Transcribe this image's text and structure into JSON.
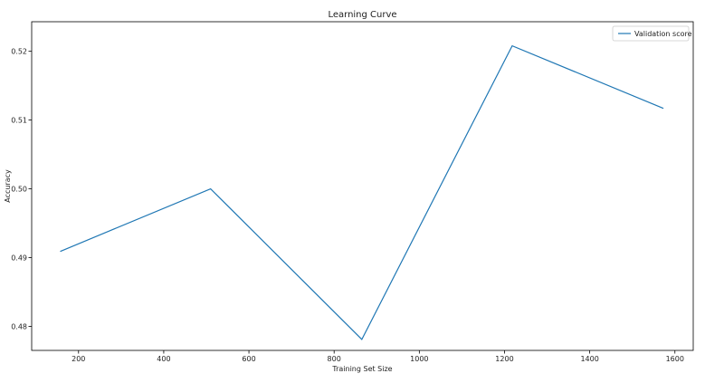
{
  "colors": {
    "series": "#1f77b4",
    "axis": "#000000",
    "background": "#ffffff",
    "legend_border": "#cccccc"
  },
  "chart_data": {
    "type": "line",
    "title": "Learning Curve",
    "xlabel": "Training Set Size",
    "ylabel": "Accuracy",
    "xlim": [
      90,
      1643
    ],
    "ylim": [
      0.4765,
      0.5243
    ],
    "xticks": [
      200,
      400,
      600,
      800,
      1000,
      1200,
      1400,
      1600
    ],
    "xtick_labels": [
      "200",
      "400",
      "600",
      "800",
      "1000",
      "1200",
      "1400",
      "1600"
    ],
    "yticks": [
      0.48,
      0.49,
      0.5,
      0.51,
      0.52
    ],
    "ytick_labels": [
      "0.48",
      "0.49",
      "0.50",
      "0.51",
      "0.52"
    ],
    "grid": false,
    "legend_position": "top-right",
    "series": [
      {
        "name": "Validation score",
        "x": [
          157,
          510,
          865,
          1218,
          1573
        ],
        "y": [
          0.4909,
          0.5,
          0.4781,
          0.5208,
          0.5117
        ]
      }
    ]
  }
}
